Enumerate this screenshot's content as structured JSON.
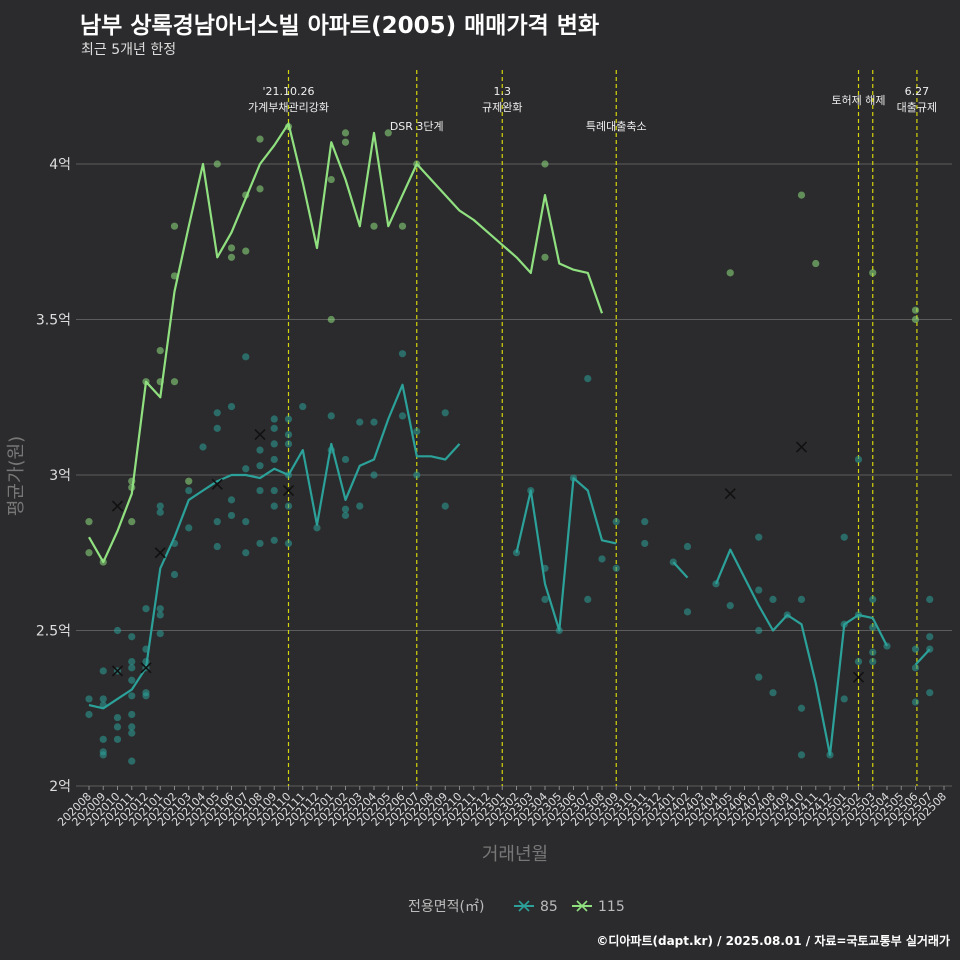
{
  "title": "남부 상록경남아너스빌 아파트(2005) 매매가격 변화",
  "subtitle": "최근 5개년 한정",
  "caption": "©디아파트(dapt.kr) / 2025.08.01 / 자료=국토교통부 실거래가",
  "colors": {
    "s85": "#2ba199",
    "s115": "#90e080",
    "event": "#d4d40a",
    "grid": "#5c5c5c"
  },
  "chart_data": {
    "type": "line",
    "xlabel": "거래년월",
    "ylabel": "평균가(원)",
    "y_unit": "억",
    "ylim": [
      2.0,
      4.2
    ],
    "yticks": [
      {
        "v": 2.0,
        "label": "2억"
      },
      {
        "v": 2.5,
        "label": "2.5억"
      },
      {
        "v": 3.0,
        "label": "3억"
      },
      {
        "v": 3.5,
        "label": "3.5억"
      },
      {
        "v": 4.0,
        "label": "4억"
      }
    ],
    "months": [
      "202008",
      "202009",
      "202010",
      "202011",
      "202012",
      "202101",
      "202102",
      "202103",
      "202104",
      "202105",
      "202106",
      "202107",
      "202108",
      "202109",
      "202110",
      "202111",
      "202112",
      "202201",
      "202202",
      "202203",
      "202204",
      "202205",
      "202206",
      "202207",
      "202208",
      "202209",
      "202210",
      "202211",
      "202212",
      "202301",
      "202302",
      "202303",
      "202304",
      "202305",
      "202306",
      "202307",
      "202308",
      "202309",
      "202310",
      "202311",
      "202312",
      "202401",
      "202402",
      "202403",
      "202404",
      "202405",
      "202406",
      "202407",
      "202408",
      "202409",
      "202410",
      "202411",
      "202412",
      "202501",
      "202502",
      "202503",
      "202504",
      "202505",
      "202506",
      "202507",
      "202508"
    ],
    "legend_title": "전용면적(㎡)",
    "events": [
      {
        "x": 14,
        "lines": [
          "'21.10.26",
          "가계부채관리강화"
        ]
      },
      {
        "x": 23,
        "lines": [
          "DSR 3단계"
        ]
      },
      {
        "x": 29,
        "lines": [
          "1.3",
          "규제완화"
        ]
      },
      {
        "x": 37,
        "lines": [
          "특례대출축소"
        ]
      },
      {
        "x": 54.0,
        "lines": [
          "토허제 해제"
        ]
      },
      {
        "x": 55.0,
        "lines": []
      },
      {
        "x": 58.1,
        "lines": [
          "6.27",
          "대출규제"
        ]
      }
    ],
    "series": [
      {
        "name": "85",
        "color": "#2ba199",
        "line": [
          [
            [
              0,
              2.26
            ],
            [
              1,
              2.25
            ],
            [
              2,
              2.28
            ],
            [
              3,
              2.31
            ],
            [
              4,
              2.38
            ],
            [
              5,
              2.7
            ],
            [
              6,
              2.8
            ],
            [
              7,
              2.92
            ],
            [
              8,
              2.95
            ],
            [
              9,
              2.98
            ],
            [
              10,
              3.0
            ],
            [
              11,
              3.0
            ],
            [
              12,
              2.99
            ],
            [
              13,
              3.02
            ],
            [
              14,
              3.0
            ],
            [
              15,
              3.08
            ],
            [
              16,
              2.84
            ],
            [
              17,
              3.1
            ],
            [
              18,
              2.92
            ],
            [
              19,
              3.03
            ],
            [
              20,
              3.05
            ],
            [
              21,
              3.18
            ],
            [
              22,
              3.29
            ],
            [
              23,
              3.06
            ],
            [
              24,
              3.06
            ],
            [
              25,
              3.05
            ],
            [
              26,
              3.1
            ]
          ],
          [
            [
              30,
              2.75
            ],
            [
              31,
              2.95
            ],
            [
              32,
              2.65
            ],
            [
              33,
              2.5
            ],
            [
              34,
              2.99
            ],
            [
              35,
              2.95
            ],
            [
              36,
              2.79
            ],
            [
              37,
              2.78
            ]
          ],
          [
            [
              41,
              2.72
            ],
            [
              42,
              2.67
            ]
          ],
          [
            [
              44,
              2.65
            ],
            [
              45,
              2.76
            ],
            [
              46,
              2.67
            ],
            [
              47,
              2.58
            ],
            [
              48,
              2.5
            ],
            [
              49,
              2.55
            ],
            [
              50,
              2.52
            ],
            [
              51,
              2.33
            ],
            [
              52,
              2.1
            ],
            [
              53,
              2.52
            ],
            [
              54,
              2.55
            ],
            [
              55,
              2.54
            ],
            [
              56,
              2.45
            ]
          ],
          [
            [
              58,
              2.39
            ],
            [
              59,
              2.44
            ]
          ]
        ],
        "points": [
          [
            0,
            2.28
          ],
          [
            0,
            2.23
          ],
          [
            1,
            2.37
          ],
          [
            1,
            2.28
          ],
          [
            1,
            2.26
          ],
          [
            1,
            2.15
          ],
          [
            1,
            2.11
          ],
          [
            1,
            2.1
          ],
          [
            2,
            2.5
          ],
          [
            2,
            2.37
          ],
          [
            2,
            2.22
          ],
          [
            2,
            2.19
          ],
          [
            2,
            2.15
          ],
          [
            3,
            2.48
          ],
          [
            3,
            2.4
          ],
          [
            3,
            2.38
          ],
          [
            3,
            2.34
          ],
          [
            3,
            2.29
          ],
          [
            3,
            2.23
          ],
          [
            3,
            2.19
          ],
          [
            3,
            2.17
          ],
          [
            3,
            2.08
          ],
          [
            4,
            2.57
          ],
          [
            4,
            2.44
          ],
          [
            4,
            2.4
          ],
          [
            4,
            2.38
          ],
          [
            4,
            2.3
          ],
          [
            4,
            2.29
          ],
          [
            5,
            2.9
          ],
          [
            5,
            2.88
          ],
          [
            5,
            2.57
          ],
          [
            5,
            2.55
          ],
          [
            5,
            2.49
          ],
          [
            6,
            2.78
          ],
          [
            6,
            2.68
          ],
          [
            7,
            2.95
          ],
          [
            7,
            2.83
          ],
          [
            8,
            3.09
          ],
          [
            9,
            3.2
          ],
          [
            9,
            3.15
          ],
          [
            9,
            2.85
          ],
          [
            9,
            2.77
          ],
          [
            10,
            3.22
          ],
          [
            10,
            2.92
          ],
          [
            10,
            2.87
          ],
          [
            11,
            3.38
          ],
          [
            11,
            3.02
          ],
          [
            11,
            2.85
          ],
          [
            11,
            2.75
          ],
          [
            12,
            3.08
          ],
          [
            12,
            3.03
          ],
          [
            12,
            2.95
          ],
          [
            12,
            2.78
          ],
          [
            13,
            3.18
          ],
          [
            13,
            3.15
          ],
          [
            13,
            3.1
          ],
          [
            13,
            3.05
          ],
          [
            13,
            2.95
          ],
          [
            13,
            2.9
          ],
          [
            13,
            2.79
          ],
          [
            14,
            3.18
          ],
          [
            14,
            3.13
          ],
          [
            14,
            3.1
          ],
          [
            14,
            3.0
          ],
          [
            14,
            2.9
          ],
          [
            14,
            2.78
          ],
          [
            15,
            3.22
          ],
          [
            16,
            2.83
          ],
          [
            17,
            3.19
          ],
          [
            17,
            3.08
          ],
          [
            18,
            3.05
          ],
          [
            18,
            2.89
          ],
          [
            18,
            2.87
          ],
          [
            19,
            3.17
          ],
          [
            19,
            2.9
          ],
          [
            20,
            3.17
          ],
          [
            20,
            3.0
          ],
          [
            22,
            3.39
          ],
          [
            22,
            3.19
          ],
          [
            23,
            3.14
          ],
          [
            23,
            3.0
          ],
          [
            25,
            3.2
          ],
          [
            25,
            2.9
          ],
          [
            30,
            2.75
          ],
          [
            31,
            2.95
          ],
          [
            32,
            2.7
          ],
          [
            32,
            2.6
          ],
          [
            33,
            2.5
          ],
          [
            34,
            2.99
          ],
          [
            35,
            3.31
          ],
          [
            35,
            2.6
          ],
          [
            36,
            2.73
          ],
          [
            37,
            2.85
          ],
          [
            37,
            2.7
          ],
          [
            39,
            2.85
          ],
          [
            39,
            2.78
          ],
          [
            41,
            2.72
          ],
          [
            42,
            2.77
          ],
          [
            42,
            2.56
          ],
          [
            44,
            2.65
          ],
          [
            45,
            2.58
          ],
          [
            47,
            2.8
          ],
          [
            47,
            2.63
          ],
          [
            47,
            2.5
          ],
          [
            47,
            2.35
          ],
          [
            48,
            2.6
          ],
          [
            48,
            2.3
          ],
          [
            49,
            2.55
          ],
          [
            50,
            2.6
          ],
          [
            50,
            2.25
          ],
          [
            50,
            2.1
          ],
          [
            52,
            2.1
          ],
          [
            53,
            2.8
          ],
          [
            53,
            2.52
          ],
          [
            53,
            2.28
          ],
          [
            54,
            3.05
          ],
          [
            54,
            2.55
          ],
          [
            54,
            2.4
          ],
          [
            55,
            2.6
          ],
          [
            55,
            2.51
          ],
          [
            55,
            2.43
          ],
          [
            55,
            2.4
          ],
          [
            56,
            2.45
          ],
          [
            58,
            2.44
          ],
          [
            58,
            2.38
          ],
          [
            58,
            2.27
          ],
          [
            59,
            2.6
          ],
          [
            59,
            2.48
          ],
          [
            59,
            2.44
          ],
          [
            59,
            2.3
          ]
        ],
        "crosses": [
          [
            2,
            2.37
          ],
          [
            4,
            2.38
          ],
          [
            5,
            2.75
          ],
          [
            9,
            2.97
          ],
          [
            45,
            2.94
          ],
          [
            50,
            3.09
          ],
          [
            54,
            2.35
          ]
        ]
      },
      {
        "name": "115",
        "color": "#90e080",
        "line": [
          [
            [
              0,
              2.8
            ],
            [
              1,
              2.72
            ],
            [
              2,
              2.82
            ],
            [
              3,
              2.94
            ],
            [
              4,
              3.3
            ],
            [
              5,
              3.25
            ],
            [
              6,
              3.59
            ],
            [
              7,
              3.8
            ],
            [
              8,
              4.0
            ],
            [
              9,
              3.7
            ],
            [
              10,
              3.78
            ],
            [
              11,
              3.89
            ],
            [
              12,
              4.0
            ],
            [
              13,
              4.06
            ],
            [
              14,
              4.13
            ],
            [
              15,
              3.94
            ],
            [
              16,
              3.73
            ],
            [
              17,
              4.07
            ],
            [
              18,
              3.95
            ],
            [
              19,
              3.8
            ],
            [
              20,
              4.1
            ],
            [
              21,
              3.8
            ],
            [
              22,
              3.9
            ],
            [
              23,
              4.0
            ],
            [
              24,
              3.95
            ],
            [
              25,
              3.9
            ],
            [
              26,
              3.85
            ],
            [
              27,
              3.82
            ],
            [
              28,
              3.78
            ],
            [
              29,
              3.74
            ],
            [
              30,
              3.7
            ],
            [
              31,
              3.65
            ],
            [
              32,
              3.9
            ],
            [
              33,
              3.68
            ],
            [
              34,
              3.66
            ],
            [
              35,
              3.65
            ],
            [
              36,
              3.52
            ]
          ]
        ],
        "points": [
          [
            0,
            2.85
          ],
          [
            0,
            2.75
          ],
          [
            1,
            2.72
          ],
          [
            3,
            2.98
          ],
          [
            3,
            2.96
          ],
          [
            3,
            2.85
          ],
          [
            4,
            3.3
          ],
          [
            5,
            3.4
          ],
          [
            5,
            3.3
          ],
          [
            6,
            3.8
          ],
          [
            6,
            3.64
          ],
          [
            6,
            3.3
          ],
          [
            7,
            2.98
          ],
          [
            9,
            4.0
          ],
          [
            10,
            3.7
          ],
          [
            10,
            3.73
          ],
          [
            11,
            3.9
          ],
          [
            11,
            3.72
          ],
          [
            12,
            4.08
          ],
          [
            12,
            3.92
          ],
          [
            14,
            4.12
          ],
          [
            17,
            3.95
          ],
          [
            17,
            3.5
          ],
          [
            18,
            4.1
          ],
          [
            18,
            4.07
          ],
          [
            20,
            3.8
          ],
          [
            21,
            4.1
          ],
          [
            22,
            3.8
          ],
          [
            23,
            4.0
          ],
          [
            32,
            4.0
          ],
          [
            32,
            3.7
          ],
          [
            45,
            3.65
          ],
          [
            50,
            3.9
          ],
          [
            51,
            3.68
          ],
          [
            55,
            3.65
          ],
          [
            58,
            3.53
          ],
          [
            58,
            3.5
          ]
        ],
        "crosses": [
          [
            2,
            2.9
          ],
          [
            12,
            3.13
          ],
          [
            14,
            2.95
          ]
        ]
      }
    ]
  }
}
